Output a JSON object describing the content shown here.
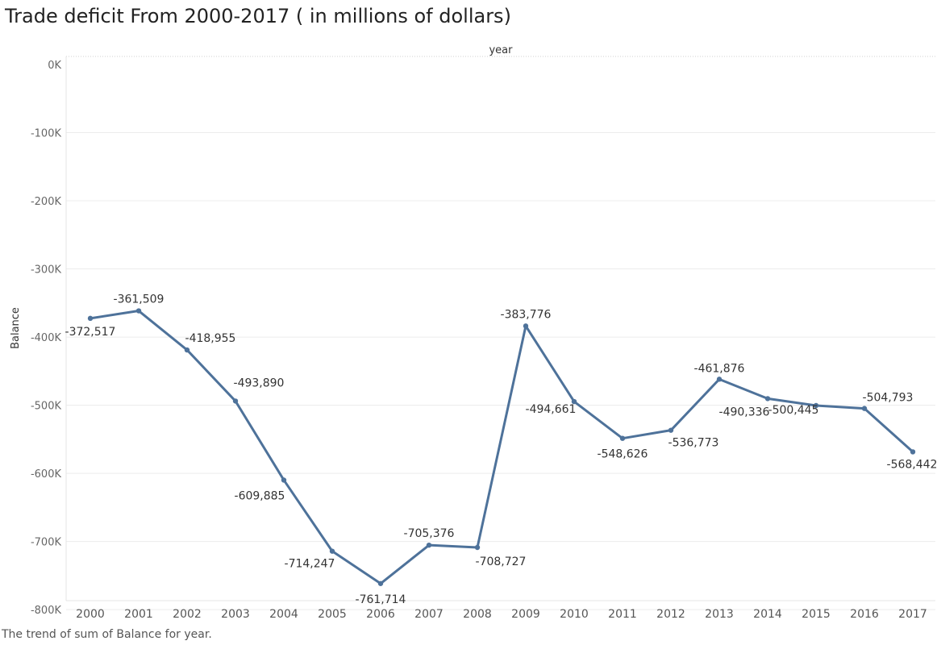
{
  "title": "Trade deficit From 2000-2017 ( in millions of dollars)",
  "caption": "The trend of sum of Balance for year.",
  "chart_data": {
    "type": "line",
    "title": "Trade deficit From 2000-2017 ( in millions of dollars)",
    "xlabel": "year",
    "ylabel": "Balance",
    "x": [
      "2000",
      "2001",
      "2002",
      "2003",
      "2004",
      "2005",
      "2006",
      "2007",
      "2008",
      "2009",
      "2010",
      "2011",
      "2012",
      "2013",
      "2014",
      "2015",
      "2016",
      "2017"
    ],
    "series": [
      {
        "values": [
          -372517,
          -361509,
          -418955,
          -493890,
          -609885,
          -714247,
          -761714,
          -705376,
          -708727,
          -383776,
          -494661,
          -548626,
          -536773,
          -461876,
          -490336,
          -500445,
          -504793,
          -568442
        ],
        "labels": [
          "-372,517",
          "-361,509",
          "-418,955",
          "-493,890",
          "-609,885",
          "-714,247",
          "-761,714",
          "-705,376",
          "-708,727",
          "-383,776",
          "-494,661",
          "-548,626",
          "-536,773",
          "-461,876",
          "-490,336",
          "-500,445",
          "-504,793",
          "-568,442"
        ],
        "color": "#4e729a"
      }
    ],
    "ylim": [
      -800000,
      0
    ],
    "yticks": [
      0,
      -100000,
      -200000,
      -300000,
      -400000,
      -500000,
      -600000,
      -700000,
      -800000
    ],
    "ytick_labels": [
      "0K",
      "-100K",
      "-200K",
      "-300K",
      "-400K",
      "-500K",
      "-600K",
      "-700K",
      "-800K"
    ],
    "grid": true,
    "xlabel_position": "top"
  }
}
